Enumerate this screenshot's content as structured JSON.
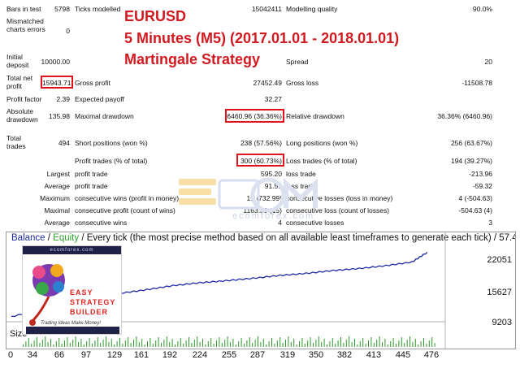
{
  "stats": {
    "bars_in_test": {
      "label": "Bars in test",
      "value": "5798"
    },
    "ticks_modelled": {
      "label": "Ticks modelled",
      "value": "15042411"
    },
    "modelling_quality": {
      "label": "Modelling quality",
      "value": "90.0%"
    },
    "mismatched": {
      "label": "Mismatched charts errors",
      "value": "0"
    },
    "initial_deposit": {
      "label": "Initial deposit",
      "value": "10000.00"
    },
    "spread": {
      "label": "Spread",
      "value": "20"
    },
    "total_net_profit": {
      "label": "Total net profit",
      "value": "15943.71"
    },
    "gross_profit": {
      "label": "Gross profit",
      "value": "27452.49"
    },
    "gross_loss": {
      "label": "Gross loss",
      "value": "-11508.78"
    },
    "profit_factor": {
      "label": "Profit factor",
      "value": "2.39"
    },
    "expected_payoff": {
      "label": "Expected payoff",
      "value": "32.27"
    },
    "absolute_drawdown": {
      "label": "Absolute drawdown",
      "value": "135.98"
    },
    "maximal_drawdown": {
      "label": "Maximal drawdown",
      "value": "6460.96 (36.36%)"
    },
    "relative_drawdown": {
      "label": "Relative drawdown",
      "value": "36.36% (6460.96)"
    },
    "total_trades": {
      "label": "Total trades",
      "value": "494"
    },
    "short_positions": {
      "label": "Short positions (won %)",
      "value": "238 (57.56%)"
    },
    "long_positions": {
      "label": "Long positions (won %)",
      "value": "256 (63.67%)"
    },
    "profit_trades": {
      "label": "Profit trades (% of total)",
      "value": "300 (60.73%)"
    },
    "loss_trades": {
      "label": "Loss trades (% of total)",
      "value": "194 (39.27%)"
    },
    "largest": {
      "label": "Largest",
      "profit_label": "profit trade",
      "profit_value": "595.20",
      "loss_label": "loss trade",
      "loss_value": "-213.96"
    },
    "average": {
      "label": "Average",
      "profit_label": "profit trade",
      "profit_value": "91.51",
      "loss_label": "loss trade",
      "loss_value": "-59.32"
    },
    "maximum": {
      "label": "Maximum",
      "wins_label": "consecutive wins (profit in money)",
      "wins_value": "19 (732.99)",
      "losses_label": "consecutive losses (loss in money)",
      "losses_value": "4 (-504.63)"
    },
    "maximal": {
      "label": "Maximal",
      "profit_label": "consecutive profit (count of wins)",
      "profit_value": "1163.39 (15)",
      "loss_label": "consecutive loss (count of losses)",
      "loss_value": "-504.63 (4)"
    },
    "average_consec": {
      "label": "Average",
      "wins_label": "consecutive wins",
      "wins_value": "4",
      "losses_label": "consecutive losses",
      "losses_value": "3"
    }
  },
  "overlay": {
    "line1": "EURUSD",
    "line2": "5 Minutes (M5) (2017.01.01 - 2018.01.01)",
    "line3": "Martingale Strategy"
  },
  "watermark": {
    "text": "ecomforex.com",
    "color": "#c9d3e6"
  },
  "graph": {
    "legend_balance": "Balance",
    "legend_sep1": " / ",
    "legend_equity": "Equity",
    "legend_sep2": " / ",
    "legend_rest": "Every tick (the most precise method based on all available least timeframes to generate each tick) / 57.4",
    "size_label": "Size",
    "y_ticks": [
      "22051",
      "15627",
      "9203"
    ],
    "x_ticks": [
      "0",
      "34",
      "66",
      "97",
      "129",
      "161",
      "192",
      "224",
      "255",
      "287",
      "319",
      "350",
      "382",
      "413",
      "445",
      "476"
    ],
    "line_color": "#1d2aa6",
    "balance_color": "#1d2aa6",
    "equity_color": "#2ea12e",
    "volume_color": "#2e9a2e"
  },
  "chart_data": {
    "type": "line",
    "series": [
      {
        "name": "Balance",
        "x": [
          0,
          34,
          66,
          97,
          129,
          161,
          192,
          224,
          255,
          287,
          319,
          350,
          382,
          413,
          445,
          476,
          494
        ],
        "values": [
          10000,
          11900,
          13200,
          14600,
          15800,
          16700,
          17700,
          18400,
          18900,
          19500,
          20200,
          20700,
          21400,
          21900,
          22600,
          23500,
          25900
        ]
      }
    ],
    "xlim": [
      0,
      500
    ],
    "ylim": [
      9203,
      26000
    ],
    "y_ticks": [
      22051,
      15627,
      9203
    ]
  },
  "ad": {
    "site": "ecomforex.com",
    "title1": "EASY",
    "title2": "STRATEGY",
    "title3": "BUILDER",
    "tagline": "Trading Ideas Make Money!"
  }
}
